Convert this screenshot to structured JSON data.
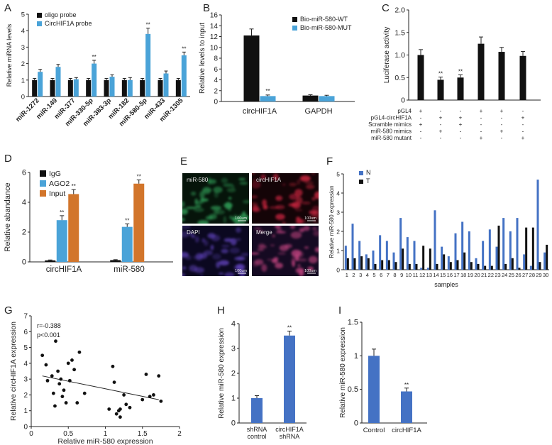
{
  "colors": {
    "black": "#111111",
    "lightblue": "#4aa3d8",
    "blue": "#4472c4",
    "orange": "#d2752b",
    "darkblue": "#2f4f9e",
    "green": "#1f7a3a",
    "red": "#b3172a",
    "purple": "#4a2e86"
  },
  "stars": "**",
  "chart_data": [
    {
      "id": "A",
      "panel": "A",
      "type": "bar",
      "ylabel": "Relative miRNA levels",
      "ylim": [
        0,
        5
      ],
      "yticks": [
        0,
        1,
        2,
        3,
        4,
        5
      ],
      "legend": [
        "oligo probe",
        "CircHIF1A probe"
      ],
      "categories": [
        "miR-1272",
        "miR-149",
        "miR-377",
        "miR-330-5p",
        "miR-383-3p",
        "miR-182",
        "miR-580-5p",
        "miR-433",
        "miR-1305"
      ],
      "series": [
        {
          "name": "oligo probe",
          "color": "#111111",
          "values": [
            1,
            1,
            1,
            1,
            1,
            1,
            1,
            1,
            1
          ],
          "err": [
            0.1,
            0.1,
            0.1,
            0.1,
            0.1,
            0.1,
            0.1,
            0.1,
            0.1
          ]
        },
        {
          "name": "CircHIF1A probe",
          "color": "#4aa3d8",
          "values": [
            1.5,
            1.8,
            1.05,
            2.0,
            1.2,
            1.0,
            3.8,
            1.4,
            2.5
          ],
          "err": [
            0.15,
            0.15,
            0.1,
            0.2,
            0.12,
            0.15,
            0.35,
            0.15,
            0.2
          ],
          "sig": [
            false,
            false,
            false,
            true,
            false,
            false,
            true,
            false,
            true
          ]
        }
      ]
    },
    {
      "id": "B",
      "panel": "B",
      "type": "bar",
      "ylabel": "Relative levels to input",
      "ylim": [
        0,
        16
      ],
      "yticks": [
        0,
        2,
        4,
        6,
        8,
        10,
        12,
        14,
        16
      ],
      "legend": [
        "Bio-miR-580-WT",
        "Bio-miR-580-MUT"
      ],
      "categories": [
        "circHIF1A",
        "GAPDH"
      ],
      "series": [
        {
          "name": "Bio-miR-580-WT",
          "color": "#111111",
          "values": [
            12.2,
            1.1
          ],
          "err": [
            1.2,
            0.15
          ]
        },
        {
          "name": "Bio-miR-580-MUT",
          "color": "#4aa3d8",
          "values": [
            1.0,
            1.0
          ],
          "err": [
            0.2,
            0.15
          ],
          "sig": [
            true,
            false
          ]
        }
      ]
    },
    {
      "id": "C",
      "panel": "C",
      "type": "bar",
      "ylabel": "Luciferase activity",
      "ylim": [
        0,
        2.0
      ],
      "yticks": [
        "0",
        "0.5",
        "1.0",
        "1.5",
        "2.0"
      ],
      "values": [
        1.0,
        0.45,
        0.5,
        1.25,
        1.07,
        0.98
      ],
      "err": [
        0.12,
        0.06,
        0.06,
        0.15,
        0.1,
        0.1
      ],
      "sig": [
        false,
        true,
        true,
        false,
        false,
        false
      ],
      "table": {
        "rows": [
          {
            "label": "pGL4",
            "marks": [
              "+",
              "-",
              "-",
              "+",
              "+",
              "-"
            ]
          },
          {
            "label": "pGL4-circHIF1A",
            "marks": [
              "-",
              "+",
              "+",
              "-",
              "-",
              "+"
            ]
          },
          {
            "label": "Scramble mimics",
            "marks": [
              "+",
              "-",
              "+",
              "-",
              "-",
              "-"
            ]
          },
          {
            "label": "miR-580 mimics",
            "marks": [
              "-",
              "+",
              "-",
              "-",
              "+",
              "-"
            ]
          },
          {
            "label": "miR-580 mutant",
            "marks": [
              "-",
              "-",
              "-",
              "+",
              "-",
              "+"
            ]
          }
        ]
      }
    },
    {
      "id": "D",
      "panel": "D",
      "type": "bar",
      "ylabel": "Relative abandance",
      "ylim": [
        0,
        6
      ],
      "yticks": [
        0,
        2,
        4,
        6
      ],
      "legend": [
        "IgG",
        "AGO2",
        "Input"
      ],
      "categories": [
        "circHIF1A",
        "miR-580"
      ],
      "series": [
        {
          "name": "IgG",
          "color": "#111111",
          "values": [
            0.1,
            0.12
          ],
          "err": [
            0.03,
            0.03
          ]
        },
        {
          "name": "AGO2",
          "color": "#4aa3d8",
          "values": [
            2.8,
            2.35
          ],
          "err": [
            0.3,
            0.2
          ],
          "sig": [
            true,
            true
          ]
        },
        {
          "name": "Input",
          "color": "#d2752b",
          "values": [
            4.55,
            5.25
          ],
          "err": [
            0.3,
            0.25
          ],
          "sig": [
            true,
            true
          ]
        }
      ]
    },
    {
      "id": "F",
      "panel": "F",
      "type": "bar",
      "ylabel": "Relative miR-580 expression",
      "xlabel": "samples",
      "ylim": [
        0,
        5
      ],
      "yticks": [
        0,
        1,
        2,
        3,
        4,
        5
      ],
      "legend": [
        "N",
        "T"
      ],
      "categories": [
        "1",
        "2",
        "3",
        "4",
        "5",
        "6",
        "7",
        "8",
        "9",
        "10",
        "11",
        "12",
        "13",
        "14",
        "15",
        "16",
        "17",
        "18",
        "19",
        "20",
        "21",
        "22",
        "23",
        "24",
        "25",
        "26",
        "27",
        "28",
        "29",
        "30"
      ],
      "series": [
        {
          "name": "N",
          "color": "#4472c4",
          "values": [
            1.25,
            2.4,
            1.5,
            0.8,
            1.0,
            1.8,
            1.5,
            0.9,
            2.7,
            1.7,
            1.5,
            0.1,
            0.1,
            3.1,
            1.2,
            0.7,
            1.9,
            2.5,
            2.0,
            0.6,
            1.5,
            2.1,
            1.2,
            2.7,
            2.0,
            2.7,
            0.8,
            0.2,
            4.7,
            0.9
          ],
          "err": []
        },
        {
          "name": "T",
          "color": "#111111",
          "values": [
            0.6,
            0.6,
            0.7,
            0.6,
            0.3,
            0.5,
            0.5,
            0.4,
            1.1,
            0.3,
            0.3,
            1.25,
            1.1,
            0.3,
            0.8,
            0.4,
            0.5,
            0.9,
            0.4,
            0.3,
            0.2,
            0.2,
            2.3,
            0.3,
            0.6,
            0.1,
            2.2,
            2.2,
            0.4,
            1.3
          ],
          "err": []
        }
      ]
    },
    {
      "id": "G",
      "panel": "G",
      "type": "scatter",
      "xlabel": "Relative miR-580 expression",
      "ylabel": "Relative circHIF1A expression",
      "xlim": [
        0,
        2
      ],
      "ylim": [
        0,
        7
      ],
      "xticks": [
        "0",
        "0.5",
        "1",
        "1.5",
        "2"
      ],
      "yticks": [
        0,
        1,
        2,
        3,
        4,
        5,
        6,
        7
      ],
      "annotations": [
        "r=-0.388",
        "p<0.001"
      ],
      "fit": {
        "x": [
          0.15,
          1.72
        ],
        "y": [
          3.2,
          1.7
        ]
      },
      "points": [
        [
          0.15,
          4.5
        ],
        [
          0.2,
          3.9
        ],
        [
          0.22,
          2.9
        ],
        [
          0.28,
          3.2
        ],
        [
          0.3,
          2.1
        ],
        [
          0.32,
          1.3
        ],
        [
          0.33,
          5.4
        ],
        [
          0.36,
          3.5
        ],
        [
          0.38,
          2.7
        ],
        [
          0.4,
          3.0
        ],
        [
          0.42,
          1.9
        ],
        [
          0.44,
          2.3
        ],
        [
          0.47,
          1.5
        ],
        [
          0.5,
          4.0
        ],
        [
          0.52,
          2.9
        ],
        [
          0.55,
          4.2
        ],
        [
          0.58,
          3.6
        ],
        [
          0.62,
          1.5
        ],
        [
          0.65,
          4.7
        ],
        [
          0.72,
          2.1
        ],
        [
          1.05,
          1.1
        ],
        [
          1.1,
          3.8
        ],
        [
          1.12,
          2.8
        ],
        [
          1.15,
          0.8
        ],
        [
          1.18,
          1.0
        ],
        [
          1.2,
          0.6
        ],
        [
          1.25,
          2.0
        ],
        [
          1.28,
          1.4
        ],
        [
          1.33,
          1.2
        ],
        [
          1.5,
          1.7
        ],
        [
          1.55,
          3.3
        ],
        [
          1.6,
          1.9
        ],
        [
          1.65,
          2.0
        ],
        [
          1.72,
          3.2
        ],
        [
          1.75,
          1.6
        ],
        [
          1.2,
          1.1
        ]
      ]
    },
    {
      "id": "H",
      "panel": "H",
      "type": "bar",
      "ylabel": "Relative miR-580 expression",
      "ylim": [
        0,
        4
      ],
      "yticks": [
        0,
        1,
        2,
        3,
        4
      ],
      "categories": [
        [
          "shRNA",
          "control"
        ],
        [
          "circHIF1A",
          "shRNA"
        ]
      ],
      "values": [
        1.0,
        3.52
      ],
      "err": [
        0.1,
        0.18
      ],
      "sig": [
        false,
        true
      ],
      "color": "#4472c4"
    },
    {
      "id": "I",
      "panel": "I",
      "type": "bar",
      "ylabel": "Relative miR-580 expression",
      "ylim": [
        0,
        1.5
      ],
      "yticks": [
        "0",
        "0.5",
        "1",
        "1.5"
      ],
      "categories": [
        "Control",
        "circHIF1A"
      ],
      "values": [
        1.0,
        0.47
      ],
      "err": [
        0.1,
        0.05
      ],
      "sig": [
        false,
        true
      ],
      "color": "#4472c4"
    }
  ],
  "panelE": {
    "label": "E",
    "cells": [
      {
        "label": "miR-580",
        "scale": "100um",
        "base": "#06140a",
        "tint": "#2f9a55"
      },
      {
        "label": "circHIF1A",
        "scale": "100um",
        "base": "#140407",
        "tint": "#c0233c"
      },
      {
        "label": "DAPI",
        "scale": "100um",
        "base": "#0b0820",
        "tint": "#5a3fb0"
      },
      {
        "label": "Merge",
        "scale": "100um",
        "base": "#150a22",
        "tint": "#b8407a"
      }
    ]
  }
}
